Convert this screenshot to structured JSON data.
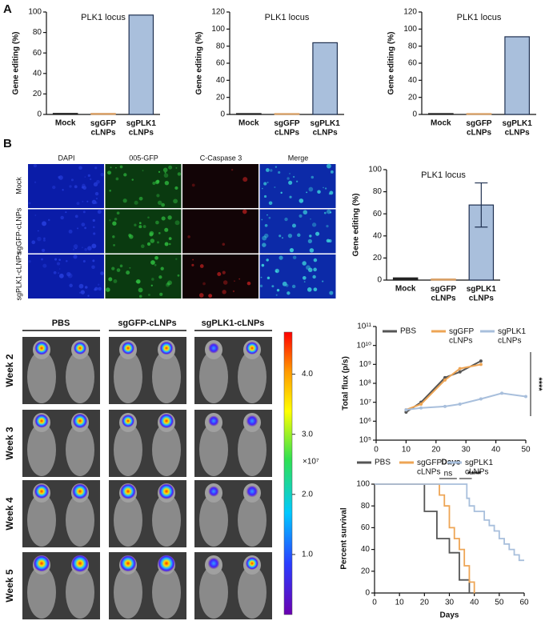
{
  "panel_labels": [
    "A",
    "B"
  ],
  "chart_data": [
    {
      "type": "bar",
      "title": "PLK1 locus",
      "ylabel": "Gene editing (%)",
      "categories": [
        "Mock",
        "sgGFP\ncLNPs",
        "sgPLK1\ncLNPs"
      ],
      "values": [
        1,
        1,
        97
      ],
      "colors": [
        "#222222",
        "#d9a066",
        "#a9bfdc"
      ],
      "ylim": [
        0,
        100
      ],
      "yticks": [
        0,
        20,
        40,
        60,
        80,
        100
      ]
    },
    {
      "type": "bar",
      "title": "PLK1 locus",
      "ylabel": "Gene editing (%)",
      "categories": [
        "Mock",
        "sgGFP\ncLNPs",
        "sgPLK1\ncLNPs"
      ],
      "values": [
        1,
        1,
        84
      ],
      "colors": [
        "#222222",
        "#d9a066",
        "#a9bfdc"
      ],
      "ylim": [
        0,
        120
      ],
      "yticks": [
        0,
        20,
        40,
        60,
        80,
        100,
        120
      ]
    },
    {
      "type": "bar",
      "title": "PLK1 locus",
      "ylabel": "Gene editing (%)",
      "categories": [
        "Mock",
        "sgGFP\ncLNPs",
        "sgPLK1\ncLNPs"
      ],
      "values": [
        1,
        1,
        91
      ],
      "colors": [
        "#222222",
        "#d9a066",
        "#a9bfdc"
      ],
      "ylim": [
        0,
        120
      ],
      "yticks": [
        0,
        20,
        40,
        60,
        80,
        100,
        120
      ]
    },
    {
      "type": "bar",
      "title": "PLK1 locus",
      "ylabel": "Gene editing (%)",
      "categories": [
        "Mock",
        "sgGFP\ncLNPs",
        "sgPLK1\ncLNPs"
      ],
      "values": [
        2,
        1,
        68
      ],
      "errors": [
        0,
        0,
        20
      ],
      "colors": [
        "#222222",
        "#d9a066",
        "#a9bfdc"
      ],
      "ylim": [
        0,
        100
      ],
      "yticks": [
        0,
        20,
        40,
        60,
        80,
        100
      ]
    },
    {
      "type": "line",
      "log_y": true,
      "ylabel": "Total flux (p/s)",
      "xlabel": "Days",
      "xlim": [
        0,
        50
      ],
      "xticks": [
        0,
        10,
        20,
        30,
        40,
        50
      ],
      "ylim": [
        100000,
        100000000000
      ],
      "yticks": [
        {
          "value": 100000,
          "label": "10⁵"
        },
        {
          "value": 1000000,
          "label": "10⁶"
        },
        {
          "value": 10000000,
          "label": "10⁷"
        },
        {
          "value": 100000000,
          "label": "10⁸"
        },
        {
          "value": 1000000000,
          "label": "10⁹"
        },
        {
          "value": 10000000000,
          "label": "10¹⁰"
        },
        {
          "value": 100000000000,
          "label": "10¹¹"
        }
      ],
      "series": [
        {
          "name": "PBS",
          "color": "#555555",
          "x": [
            10,
            15,
            23,
            28,
            35
          ],
          "values": [
            3000000,
            10000000,
            200000000,
            400000000,
            1500000000
          ]
        },
        {
          "name": "sgGFP\ncLNPs",
          "color": "#eea555",
          "x": [
            10,
            15,
            23,
            28,
            35
          ],
          "values": [
            4000000,
            8000000,
            150000000,
            600000000,
            1000000000
          ]
        },
        {
          "name": "sgPLK1\ncLNPs",
          "color": "#a8bfdc",
          "x": [
            10,
            15,
            23,
            28,
            35,
            42,
            50
          ],
          "values": [
            4000000,
            5000000,
            6000000,
            8000000,
            15000000,
            30000000,
            20000000
          ]
        }
      ],
      "annotations": [
        "****"
      ]
    },
    {
      "type": "step",
      "ylabel": "Percent survival",
      "xlabel": "Days",
      "xlim": [
        0,
        60
      ],
      "xticks": [
        0,
        10,
        20,
        30,
        40,
        50,
        60
      ],
      "ylim": [
        0,
        100
      ],
      "yticks": [
        0,
        20,
        40,
        60,
        80,
        100
      ],
      "series": [
        {
          "name": "PBS",
          "color": "#555555",
          "x": [
            0,
            20,
            25,
            30,
            34,
            38
          ],
          "values": [
            100,
            75,
            50,
            37,
            12,
            0
          ]
        },
        {
          "name": "sgGFP\ncLNPs",
          "color": "#eea555",
          "x": [
            0,
            26,
            28,
            30,
            32,
            34,
            36,
            38,
            40
          ],
          "values": [
            100,
            90,
            80,
            60,
            50,
            40,
            25,
            10,
            0
          ]
        },
        {
          "name": "sgPLK1\ncLNPs",
          "color": "#a8bfdc",
          "x": [
            0,
            37,
            38,
            40,
            44,
            46,
            48,
            50,
            52,
            54,
            56,
            58,
            60
          ],
          "values": [
            100,
            87,
            80,
            75,
            67,
            62,
            57,
            50,
            45,
            40,
            35,
            30,
            30
          ]
        }
      ],
      "annotations": [
        "ns",
        "****"
      ]
    }
  ],
  "microscopy": {
    "columns": [
      "DAPI",
      "005-GFP",
      "C-Caspase 3",
      "Merge"
    ],
    "rows": [
      "Mock",
      "sgGFP-cLNPs",
      "sgPLK1-cLNPs"
    ]
  },
  "imaging": {
    "columns": [
      "PBS",
      "sgGFP-cLNPs",
      "sgPLK1-cLNPs"
    ],
    "rows": [
      "Week 2",
      "Week 3",
      "Week 4",
      "Week 5"
    ],
    "colorbar": {
      "lim": [
        0,
        4.7
      ],
      "ticks": [
        {
          "value": 1,
          "label": "1.0"
        },
        {
          "value": 2,
          "label": "2.0"
        },
        {
          "value": 3,
          "label": "3.0"
        },
        {
          "value": 4,
          "label": "4.0"
        }
      ],
      "label": "×10⁷"
    }
  }
}
